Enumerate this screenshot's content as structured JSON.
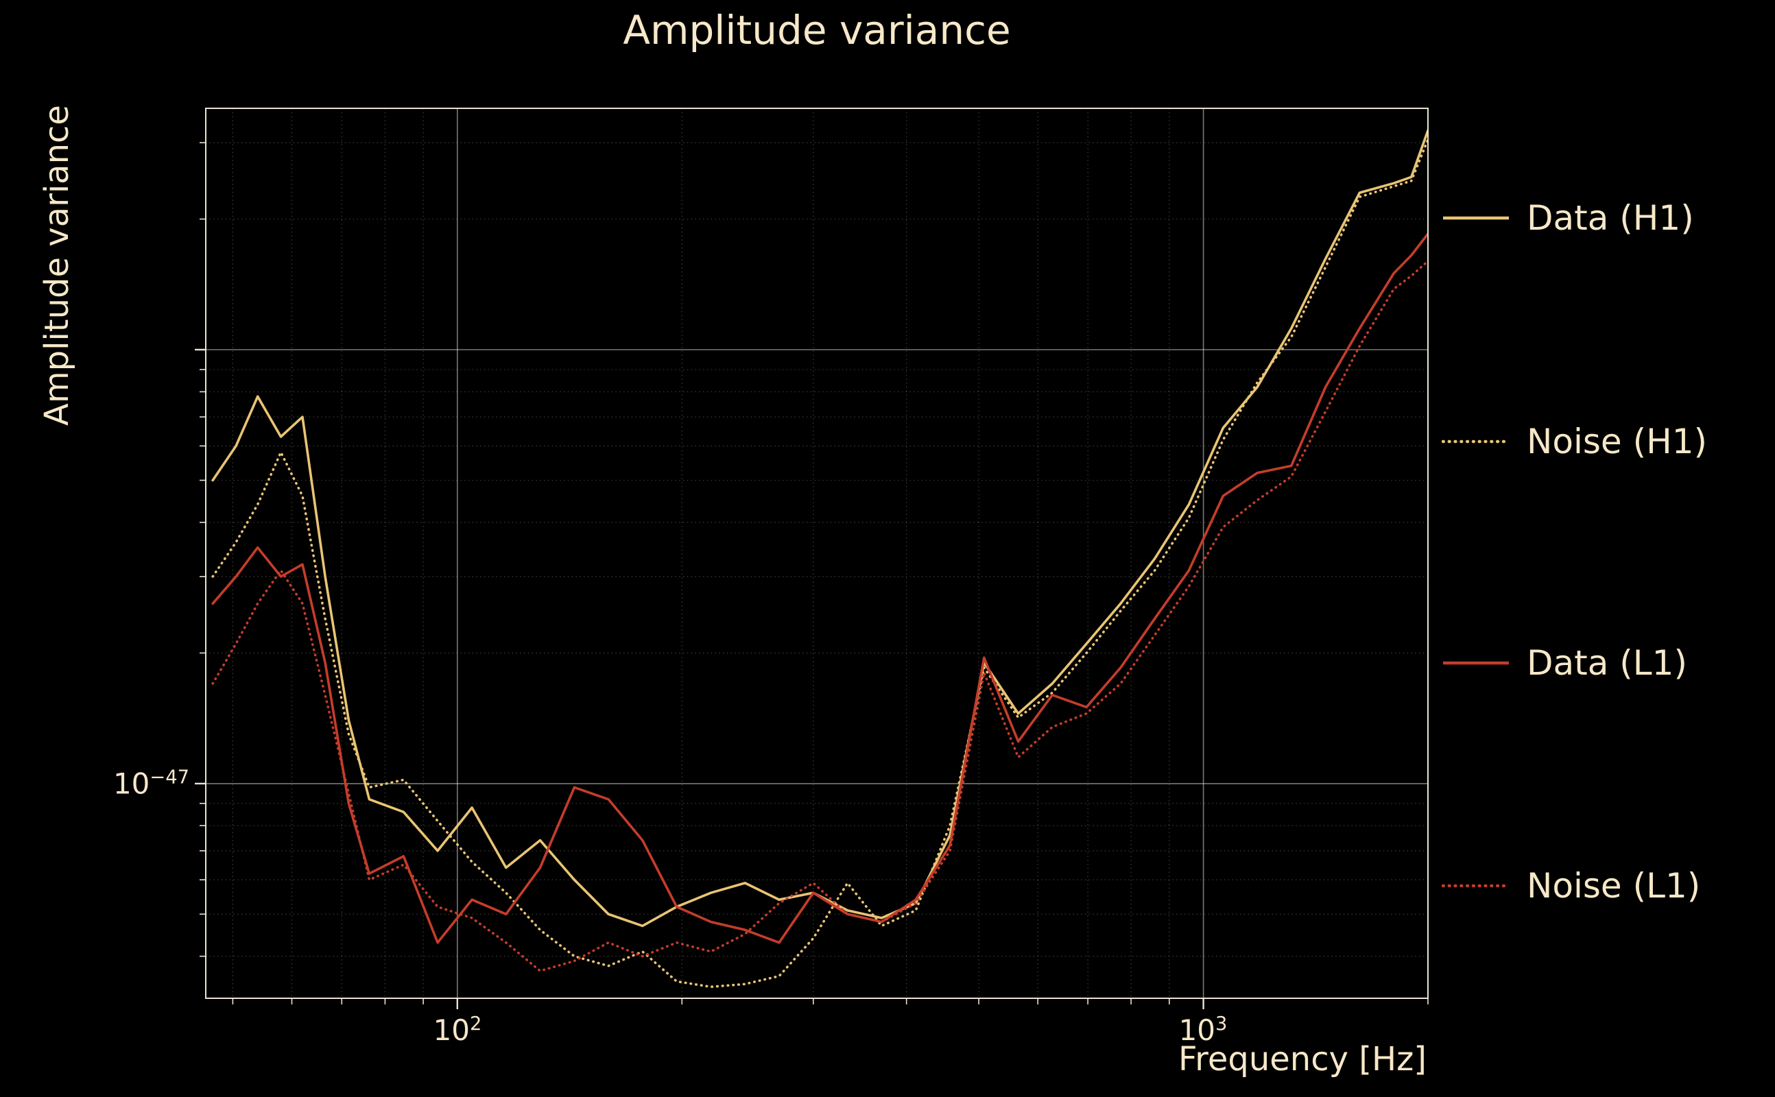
{
  "title": "Amplitude variance",
  "colors": {
    "background": "#000000",
    "text": "#f6e8c8",
    "gold": "#e8c474",
    "red": "#c43d2b",
    "grid_major": "rgba(240,240,240,0.50)",
    "grid_minor": "rgba(240,240,240,0.28)",
    "spine": "rgba(246,238,220,0.95)"
  },
  "axes": {
    "x_label": "Frequency [Hz]",
    "y_label": "Amplitude variance",
    "x_ticks": [
      {
        "base": "10",
        "exp": "2"
      },
      {
        "base": "10",
        "exp": "3"
      }
    ],
    "y_ticks": [
      {
        "base": "10",
        "exp": "−47"
      }
    ]
  },
  "legend": {
    "items": [
      {
        "label": "Data (H1)",
        "color": "#e8c474",
        "dash": "solid"
      },
      {
        "label": "Noise (H1)",
        "color": "#e8c474",
        "dash": "dotted"
      },
      {
        "label": "Data (L1)",
        "color": "#c43d2b",
        "dash": "solid"
      },
      {
        "label": "Noise (L1)",
        "color": "#c43d2b",
        "dash": "dotted"
      }
    ]
  },
  "chart_data": {
    "type": "line",
    "title": "Amplitude variance",
    "xlabel": "Frequency [Hz]",
    "ylabel": "Amplitude variance",
    "x_scale": "log",
    "y_scale": "log",
    "xlim": [
      46,
      2000
    ],
    "ylim": [
      3.2e-48,
      3.6e-46
    ],
    "x_major_ticks": [
      100,
      1000
    ],
    "y_major_ticks": [
      1e-47,
      1e-46
    ],
    "grid": "major-solid, minor-dotted",
    "legend_position": "right-outside",
    "x": [
      47,
      50.5,
      54,
      58,
      62,
      66.5,
      71.5,
      76.2,
      84.7,
      94.1,
      104.6,
      116.2,
      129.1,
      143.5,
      159.4,
      177.1,
      196.8,
      218.7,
      243,
      270,
      300,
      333.4,
      370.4,
      411.6,
      457.3,
      508.2,
      564.7,
      627.4,
      697.1,
      774.6,
      860.7,
      956.4,
      1062.7,
      1180.8,
      1312,
      1457.8,
      1619.8,
      1799.8,
      1900,
      2000
    ],
    "series": [
      {
        "name": "Data (H1)",
        "color": "#e8c474",
        "style": "solid",
        "values": [
          5e-47,
          6e-47,
          7.8e-47,
          6.3e-47,
          7e-47,
          3e-47,
          1.4e-47,
          9.2e-48,
          8.6e-48,
          7e-48,
          8.8e-48,
          6.4e-48,
          7.4e-48,
          6e-48,
          5e-48,
          4.7e-48,
          5.2e-48,
          5.6e-48,
          5.9e-48,
          5.4e-48,
          5.6e-48,
          5.1e-48,
          4.9e-48,
          5.3e-48,
          7.6e-48,
          1.9e-47,
          1.45e-47,
          1.7e-47,
          2.1e-47,
          2.6e-47,
          3.3e-47,
          4.4e-47,
          6.6e-47,
          8.2e-47,
          1.12e-46,
          1.62e-46,
          2.3e-46,
          2.42e-46,
          2.5e-46,
          3.2e-46
        ]
      },
      {
        "name": "Noise (H1)",
        "color": "#e8c474",
        "style": "dotted",
        "values": [
          3e-47,
          3.6e-47,
          4.4e-47,
          5.8e-47,
          4.6e-47,
          2.4e-47,
          1.3e-47,
          9.8e-48,
          1.02e-47,
          8.2e-48,
          6.6e-48,
          5.6e-48,
          4.6e-48,
          4e-48,
          3.8e-48,
          4.1e-48,
          3.5e-48,
          3.4e-48,
          3.45e-48,
          3.6e-48,
          4.4e-48,
          5.9e-48,
          4.7e-48,
          5.1e-48,
          8e-48,
          1.85e-47,
          1.42e-47,
          1.62e-47,
          2e-47,
          2.5e-47,
          3.1e-47,
          4.1e-47,
          6.2e-47,
          8.4e-47,
          1.07e-46,
          1.55e-46,
          2.25e-46,
          2.38e-46,
          2.45e-46,
          3.05e-46
        ]
      },
      {
        "name": "Data (L1)",
        "color": "#c43d2b",
        "style": "solid",
        "values": [
          2.6e-47,
          3e-47,
          3.5e-47,
          3e-47,
          3.2e-47,
          1.9e-47,
          9e-48,
          6.2e-48,
          6.8e-48,
          4.3e-48,
          5.4e-48,
          5e-48,
          6.4e-48,
          9.8e-48,
          9.2e-48,
          7.4e-48,
          5.2e-48,
          4.8e-48,
          4.6e-48,
          4.3e-48,
          5.6e-48,
          5e-48,
          4.8e-48,
          5.4e-48,
          7.2e-48,
          1.95e-47,
          1.25e-47,
          1.6e-47,
          1.5e-47,
          1.85e-47,
          2.4e-47,
          3.1e-47,
          4.6e-47,
          5.2e-47,
          5.4e-47,
          8.2e-47,
          1.12e-46,
          1.5e-46,
          1.65e-46,
          1.85e-46
        ]
      },
      {
        "name": "Noise (L1)",
        "color": "#c43d2b",
        "style": "dotted",
        "values": [
          1.7e-47,
          2.1e-47,
          2.6e-47,
          3.1e-47,
          2.6e-47,
          1.6e-47,
          9.5e-48,
          6e-48,
          6.5e-48,
          5.2e-48,
          4.9e-48,
          4.3e-48,
          3.7e-48,
          3.9e-48,
          4.3e-48,
          4e-48,
          4.3e-48,
          4.1e-48,
          4.5e-48,
          5.3e-48,
          5.9e-48,
          5e-48,
          4.8e-48,
          5.3e-48,
          7e-48,
          1.8e-47,
          1.15e-47,
          1.35e-47,
          1.45e-47,
          1.7e-47,
          2.2e-47,
          2.85e-47,
          3.9e-47,
          4.5e-47,
          5.1e-47,
          7.2e-47,
          1.02e-46,
          1.38e-46,
          1.48e-46,
          1.6e-46
        ]
      }
    ]
  }
}
